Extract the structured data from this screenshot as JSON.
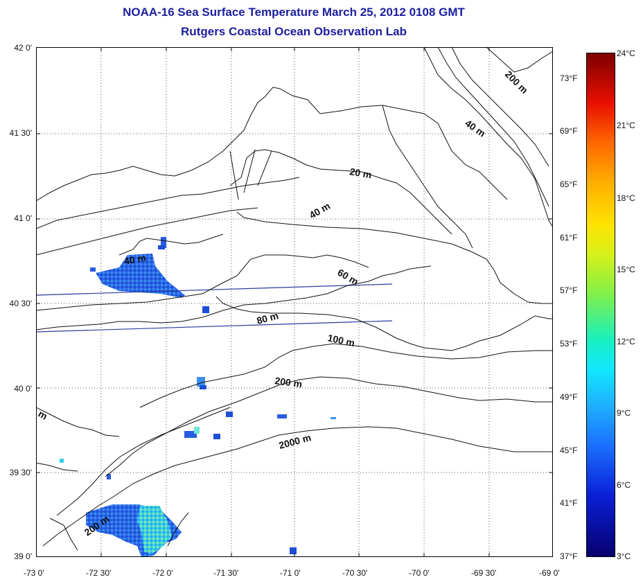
{
  "title_line1": "NOAA-16 Sea Surface Temperature March 25, 2012 0108 GMT",
  "title_line2": "Rutgers Coastal Ocean Observation Lab",
  "lat_labels": [
    "42 0'",
    "41 30'",
    "41 0'",
    "40 30'",
    "40 0'",
    "39 30'",
    "39 0'"
  ],
  "lon_labels": [
    "-73 0'",
    "-72 30'",
    "-72 0'",
    "-71 30'",
    "-71 0'",
    "-70 30'",
    "-70 0'",
    "-69 30'",
    "-69 0'"
  ],
  "fahrenheit_labels": [
    "73°F",
    "69°F",
    "65°F",
    "61°F",
    "57°F",
    "53°F",
    "49°F",
    "45°F",
    "41°F",
    "37°F"
  ],
  "celsius_labels": [
    "24°C",
    "21°C",
    "18°C",
    "15°C",
    "12°C",
    "9°C",
    "6°C",
    "3°C"
  ],
  "contour_labels": {
    "c200_ne": "200 m",
    "c40_ne": "40 m",
    "c20": "20 m",
    "c40_mid": "40 m",
    "c40_west": "40 m",
    "c60": "60 m",
    "c80": "80 m",
    "c100": "100 m",
    "c200": "200 m",
    "c2000": "2000 m",
    "c200_sw": "200 m",
    "c_edge": "m"
  },
  "colors": {
    "title": "#1b1f9e",
    "contour": "#111111",
    "track_line": "#2a3a9a"
  }
}
